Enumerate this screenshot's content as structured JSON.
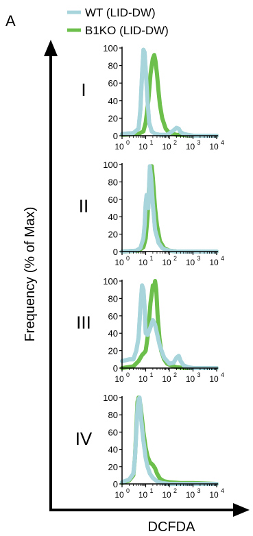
{
  "figure": {
    "panel_letter": "A",
    "y_label": "Frequency (% of Max)",
    "x_label": "DCFDA"
  },
  "colors": {
    "wt": "#a8d4dc",
    "b1ko": "#6bbf4a",
    "axis": "#000000"
  },
  "chart_data": [
    {
      "type": "line",
      "panel": "I",
      "xscale": "log",
      "xlim": [
        1,
        10000
      ],
      "ylim": [
        0,
        100
      ],
      "yticks": [
        0,
        20,
        40,
        60,
        80,
        100
      ],
      "xticks": [
        "10",
        "10",
        "10",
        "10",
        "10"
      ],
      "xtick_exponents": [
        "0",
        "1",
        "2",
        "3",
        "4"
      ],
      "series": [
        {
          "name": "WT (LID-DW)",
          "color": "#a8d4dc",
          "x": [
            1,
            3,
            5,
            6,
            7,
            8,
            9,
            10,
            12,
            14,
            18,
            25,
            40,
            80,
            150,
            200,
            250,
            300,
            400,
            600,
            1000,
            10000
          ],
          "y": [
            2,
            3,
            8,
            30,
            70,
            98,
            95,
            75,
            40,
            15,
            5,
            2,
            1,
            1,
            6,
            9,
            8,
            4,
            2,
            1,
            0,
            0
          ]
        },
        {
          "name": "B1KO (LID-DW)",
          "color": "#6bbf4a",
          "x": [
            1,
            5,
            8,
            10,
            13,
            16,
            18,
            20,
            23,
            26,
            30,
            35,
            40,
            50,
            70,
            100,
            200,
            300,
            1000,
            10000
          ],
          "y": [
            1,
            2,
            5,
            15,
            40,
            70,
            80,
            88,
            92,
            85,
            70,
            50,
            35,
            20,
            8,
            3,
            1,
            1,
            0,
            0
          ]
        }
      ]
    },
    {
      "type": "line",
      "panel": "II",
      "xscale": "log",
      "xlim": [
        1,
        10000
      ],
      "ylim": [
        0,
        100
      ],
      "yticks": [
        0,
        20,
        40,
        60,
        80,
        100
      ],
      "xticks": [
        "10",
        "10",
        "10",
        "10",
        "10"
      ],
      "xtick_exponents": [
        "0",
        "1",
        "2",
        "3",
        "4"
      ],
      "series": [
        {
          "name": "WT (LID-DW)",
          "color": "#a8d4dc",
          "x": [
            1,
            4,
            6,
            8,
            9,
            10,
            11,
            12,
            13,
            14,
            15,
            17,
            20,
            25,
            35,
            50,
            70,
            100,
            200,
            10000
          ],
          "y": [
            0,
            1,
            4,
            15,
            30,
            55,
            65,
            60,
            50,
            75,
            98,
            85,
            55,
            25,
            10,
            4,
            2,
            1,
            0,
            0
          ]
        },
        {
          "name": "B1KO (LID-DW)",
          "color": "#6bbf4a",
          "x": [
            1,
            5,
            8,
            10,
            12,
            14,
            16,
            18,
            20,
            22,
            25,
            30,
            40,
            60,
            100,
            200,
            10000
          ],
          "y": [
            0,
            1,
            5,
            15,
            40,
            75,
            95,
            98,
            85,
            70,
            50,
            30,
            12,
            4,
            1,
            0,
            0
          ]
        }
      ]
    },
    {
      "type": "line",
      "panel": "III",
      "xscale": "log",
      "xlim": [
        1,
        10000
      ],
      "ylim": [
        0,
        100
      ],
      "yticks": [
        0,
        20,
        40,
        60,
        80,
        100
      ],
      "xticks": [
        "10",
        "10",
        "10",
        "10",
        "10"
      ],
      "xtick_exponents": [
        "0",
        "1",
        "2",
        "3",
        "4"
      ],
      "series": [
        {
          "name": "WT (LID-DW)",
          "color": "#a8d4dc",
          "x": [
            1,
            2,
            3,
            4,
            5,
            6,
            7,
            8,
            9,
            10,
            12,
            15,
            20,
            25,
            30,
            40,
            60,
            100,
            150,
            200,
            250,
            300,
            400,
            600,
            1000,
            10000
          ],
          "y": [
            8,
            10,
            10,
            20,
            35,
            70,
            95,
            90,
            70,
            40,
            38,
            45,
            55,
            50,
            40,
            25,
            12,
            5,
            6,
            12,
            14,
            8,
            3,
            1,
            0,
            0
          ]
        },
        {
          "name": "B1KO (LID-DW)",
          "color": "#6bbf4a",
          "x": [
            1,
            3,
            5,
            7,
            9,
            10,
            12,
            14,
            16,
            18,
            20,
            22,
            25,
            28,
            32,
            38,
            45,
            60,
            80,
            120,
            200,
            500,
            10000
          ],
          "y": [
            0,
            2,
            8,
            15,
            18,
            20,
            35,
            55,
            75,
            85,
            95,
            90,
            100,
            90,
            60,
            35,
            20,
            10,
            5,
            3,
            1,
            0,
            0
          ]
        }
      ]
    },
    {
      "type": "line",
      "panel": "IV",
      "xscale": "log",
      "xlim": [
        1,
        10000
      ],
      "ylim": [
        0,
        100
      ],
      "yticks": [
        0,
        20,
        40,
        60,
        80,
        100
      ],
      "xticks": [
        "10",
        "10",
        "10",
        "10",
        "10"
      ],
      "xtick_exponents": [
        "0",
        "1",
        "2",
        "3",
        "4"
      ],
      "series": [
        {
          "name": "WT (LID-DW)",
          "color": "#a8d4dc",
          "x": [
            1,
            2,
            3,
            3.5,
            4,
            4.5,
            5,
            5.5,
            6,
            6.5,
            7,
            8,
            9,
            10,
            12,
            15,
            20,
            30,
            50,
            100,
            300,
            10000
          ],
          "y": [
            2,
            5,
            12,
            30,
            60,
            88,
            98,
            100,
            90,
            75,
            65,
            50,
            40,
            30,
            20,
            12,
            7,
            3,
            1,
            0,
            0,
            0
          ]
        },
        {
          "name": "B1KO (LID-DW)",
          "color": "#6bbf4a",
          "x": [
            1,
            2,
            3,
            3.5,
            4,
            4.5,
            5,
            6,
            7,
            8,
            10,
            12,
            15,
            20,
            25,
            30,
            40,
            60,
            100,
            300,
            1000,
            10000
          ],
          "y": [
            1,
            4,
            10,
            30,
            65,
            95,
            100,
            92,
            75,
            60,
            42,
            32,
            25,
            22,
            18,
            12,
            6,
            3,
            2,
            1,
            1,
            0
          ]
        }
      ]
    }
  ]
}
